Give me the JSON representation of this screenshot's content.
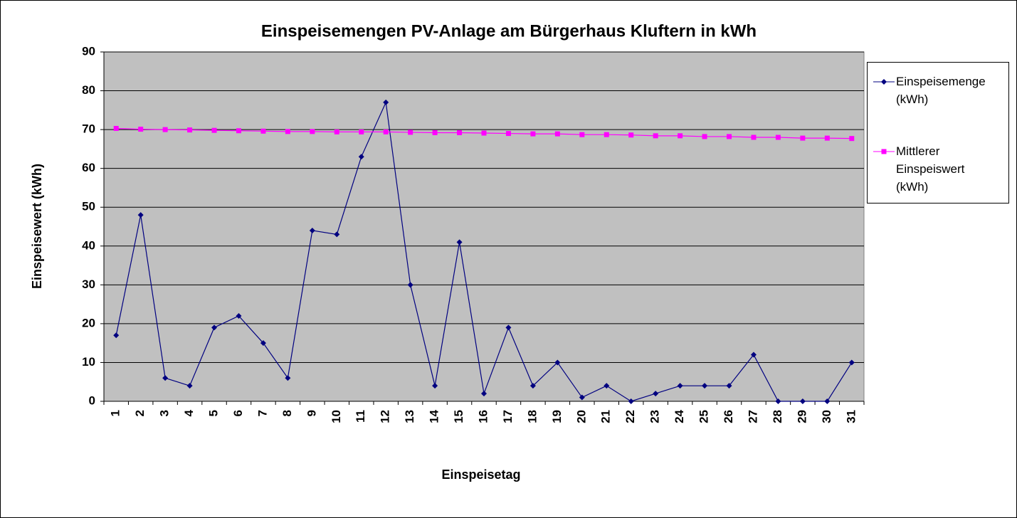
{
  "chart_data": {
    "type": "line",
    "title": "Einspeisemengen PV-Anlage am Bürgerhaus Kluftern in kWh",
    "x_label": "Einspeisetag",
    "y_label": "Einspeisewert (kWh)",
    "categories": [
      "1",
      "2",
      "3",
      "4",
      "5",
      "6",
      "7",
      "8",
      "9",
      "10",
      "11",
      "12",
      "13",
      "14",
      "15",
      "16",
      "17",
      "18",
      "19",
      "20",
      "21",
      "22",
      "23",
      "24",
      "25",
      "26",
      "27",
      "28",
      "29",
      "30",
      "31"
    ],
    "series": [
      {
        "name": "Einspeisemenge (kWh)",
        "color": "#000080",
        "marker": "diamond",
        "values": [
          17,
          48,
          6,
          4,
          19,
          22,
          15,
          6,
          44,
          43,
          63,
          77,
          30,
          4,
          41,
          2,
          19,
          4,
          10,
          1,
          4,
          0,
          2,
          4,
          4,
          4,
          12,
          0,
          0,
          0,
          10
        ]
      },
      {
        "name": "Mittlerer Einspeiswert (kWh)",
        "color": "#ff00ff",
        "marker": "square",
        "values": [
          70.3,
          70.1,
          70.0,
          69.9,
          69.8,
          69.7,
          69.6,
          69.5,
          69.5,
          69.4,
          69.4,
          69.4,
          69.3,
          69.2,
          69.2,
          69.1,
          69.0,
          68.9,
          68.9,
          68.7,
          68.7,
          68.6,
          68.4,
          68.4,
          68.2,
          68.2,
          68.0,
          68.0,
          67.8,
          67.8,
          67.7
        ]
      }
    ],
    "ylim": [
      0,
      90
    ],
    "yticks": [
      0,
      10,
      20,
      30,
      40,
      50,
      60,
      70,
      80,
      90
    ],
    "grid": true,
    "legend": "right"
  }
}
